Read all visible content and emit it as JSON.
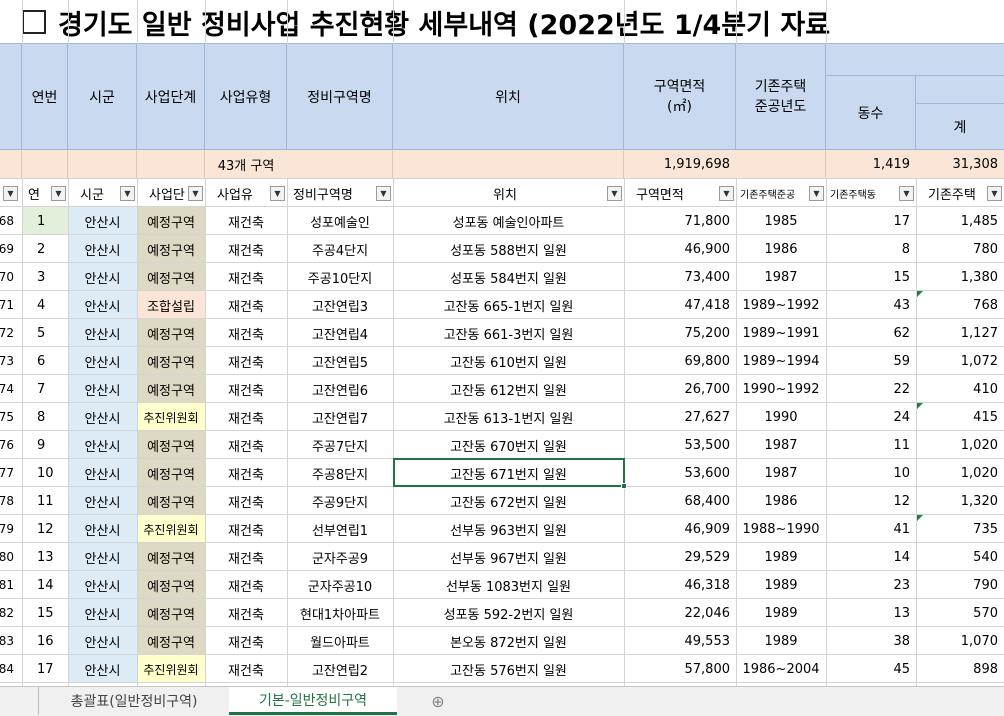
{
  "title": "경기도 일반 정비사업 추진현황 세부내역 (2022년도 1/4분기 자료",
  "headers": {
    "yeonbeon": "연번",
    "sigun": "시군",
    "saeop_dangye": "사업단계",
    "saeop_yuhyeong": "사업유형",
    "jeongbi_guyeokmyeong": "정비구역명",
    "wichi": "위치",
    "guyeok_myeonjeok_line1": "구역면적",
    "guyeok_myeonjeok_line2": "(㎡)",
    "gijon_jutaek_line1": "기존주택",
    "gijon_jutaek_line2": "준공년도",
    "dongsu": "동수",
    "gye": "계"
  },
  "summary": {
    "count_label": "43개 구역",
    "area_total": "1,919,698",
    "dong_total": "1,419",
    "gye_total": "31,308"
  },
  "filter_row": {
    "c0": "연",
    "c1": "시군",
    "c2": "사업단",
    "c3": "사업유",
    "c4": "정비구역명",
    "c5": "위치",
    "c6": "구역면적",
    "c7": "기존주택준공",
    "c8": "기존주택동",
    "c9": "기존주택"
  },
  "row_numbers": [
    "68",
    "69",
    "70",
    "71",
    "72",
    "73",
    "74",
    "75",
    "76",
    "77",
    "78",
    "79",
    "80",
    "81",
    "82",
    "83",
    "84"
  ],
  "rows": [
    {
      "no": "1",
      "sigun": "안산시",
      "stage": "예정구역",
      "type": "재건축",
      "name": "성포예술인",
      "loc": "성포동 예술인아파트",
      "area": "71,800",
      "year": "1985",
      "dong": "17",
      "gye": "1,485"
    },
    {
      "no": "2",
      "sigun": "안산시",
      "stage": "예정구역",
      "type": "재건축",
      "name": "주공4단지",
      "loc": "성포동 588번지 일원",
      "area": "46,900",
      "year": "1986",
      "dong": "8",
      "gye": "780"
    },
    {
      "no": "3",
      "sigun": "안산시",
      "stage": "예정구역",
      "type": "재건축",
      "name": "주공10단지",
      "loc": "성포동 584번지 일원",
      "area": "73,400",
      "year": "1987",
      "dong": "15",
      "gye": "1,380"
    },
    {
      "no": "4",
      "sigun": "안산시",
      "stage": "조합설립",
      "type": "재건축",
      "name": "고잔연립3",
      "loc": "고잔동 665-1번지 일원",
      "area": "47,418",
      "year": "1989~1992",
      "dong": "43",
      "gye": "768"
    },
    {
      "no": "5",
      "sigun": "안산시",
      "stage": "예정구역",
      "type": "재건축",
      "name": "고잔연립4",
      "loc": "고잔동 661-3번지 일원",
      "area": "75,200",
      "year": "1989~1991",
      "dong": "62",
      "gye": "1,127"
    },
    {
      "no": "6",
      "sigun": "안산시",
      "stage": "예정구역",
      "type": "재건축",
      "name": "고잔연립5",
      "loc": "고잔동 610번지 일원",
      "area": "69,800",
      "year": "1989~1994",
      "dong": "59",
      "gye": "1,072"
    },
    {
      "no": "7",
      "sigun": "안산시",
      "stage": "예정구역",
      "type": "재건축",
      "name": "고잔연립6",
      "loc": "고잔동 612번지 일원",
      "area": "26,700",
      "year": "1990~1992",
      "dong": "22",
      "gye": "410"
    },
    {
      "no": "8",
      "sigun": "안산시",
      "stage": "추진위원회",
      "type": "재건축",
      "name": "고잔연립7",
      "loc": "고잔동 613-1번지 일원",
      "area": "27,627",
      "year": "1990",
      "dong": "24",
      "gye": "415"
    },
    {
      "no": "9",
      "sigun": "안산시",
      "stage": "예정구역",
      "type": "재건축",
      "name": "주공7단지",
      "loc": "고잔동 670번지 일원",
      "area": "53,500",
      "year": "1987",
      "dong": "11",
      "gye": "1,020"
    },
    {
      "no": "10",
      "sigun": "안산시",
      "stage": "예정구역",
      "type": "재건축",
      "name": "주공8단지",
      "loc": "고잔동 671번지 일원",
      "area": "53,600",
      "year": "1987",
      "dong": "10",
      "gye": "1,020"
    },
    {
      "no": "11",
      "sigun": "안산시",
      "stage": "예정구역",
      "type": "재건축",
      "name": "주공9단지",
      "loc": "고잔동 672번지 일원",
      "area": "68,400",
      "year": "1986",
      "dong": "12",
      "gye": "1,320"
    },
    {
      "no": "12",
      "sigun": "안산시",
      "stage": "추진위원회",
      "type": "재건축",
      "name": "선부연립1",
      "loc": "선부동 963번지 일원",
      "area": "46,909",
      "year": "1988~1990",
      "dong": "41",
      "gye": "735"
    },
    {
      "no": "13",
      "sigun": "안산시",
      "stage": "예정구역",
      "type": "재건축",
      "name": "군자주공9",
      "loc": "선부동 967번지 일원",
      "area": "29,529",
      "year": "1989",
      "dong": "14",
      "gye": "540"
    },
    {
      "no": "14",
      "sigun": "안산시",
      "stage": "예정구역",
      "type": "재건축",
      "name": "군자주공10",
      "loc": "선부동 1083번지 일원",
      "area": "46,318",
      "year": "1989",
      "dong": "23",
      "gye": "790"
    },
    {
      "no": "15",
      "sigun": "안산시",
      "stage": "예정구역",
      "type": "재건축",
      "name": "현대1차아파트",
      "loc": "성포동 592-2번지 일원",
      "area": "22,046",
      "year": "1989",
      "dong": "13",
      "gye": "570"
    },
    {
      "no": "16",
      "sigun": "안산시",
      "stage": "예정구역",
      "type": "재건축",
      "name": "월드아파트",
      "loc": "본오동 872번지 일원",
      "area": "49,553",
      "year": "1989",
      "dong": "38",
      "gye": "1,070"
    },
    {
      "no": "17",
      "sigun": "안산시",
      "stage": "추진위원회",
      "type": "재건축",
      "name": "고잔연립2",
      "loc": "고잔동 576번지 일원",
      "area": "57,800",
      "year": "1986~2004",
      "dong": "45",
      "gye": "898"
    }
  ],
  "tabs": [
    "총괄표(일반정비구역)",
    "기본-일반정비구역"
  ],
  "colors": {
    "header_bg": "#c9daf0",
    "summary_bg": "#fbe5d6",
    "sigun_bg": "#ddebf7",
    "stage_bg": "#ddd9c4",
    "stage_johap": "#fce4d6",
    "stage_chujin": "#ffffcc",
    "first_no_bg": "#e2efda",
    "active_tab": "#217346"
  }
}
